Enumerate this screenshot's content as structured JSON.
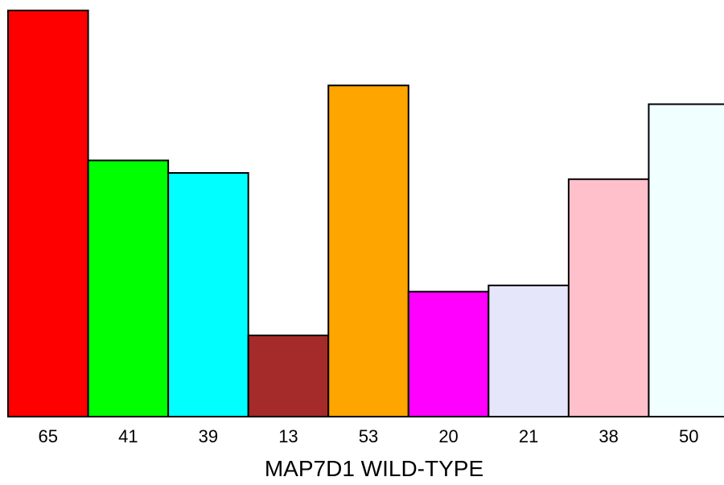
{
  "chart_data": {
    "type": "bar",
    "categories": [
      "65",
      "41",
      "39",
      "13",
      "53",
      "20",
      "21",
      "38",
      "50"
    ],
    "values": [
      65,
      41,
      39,
      13,
      53,
      20,
      21,
      38,
      50
    ],
    "colors": [
      "#ff0000",
      "#00ff00",
      "#00ffff",
      "#a52a2a",
      "#ffa500",
      "#ff00ff",
      "#e6e6fa",
      "#ffc0cb",
      "#f0ffff"
    ],
    "title": "",
    "xlabel": "MAP7D1 WILD-TYPE",
    "ylabel": "",
    "ylim": [
      0,
      65
    ],
    "grid": false,
    "legend": "none"
  }
}
